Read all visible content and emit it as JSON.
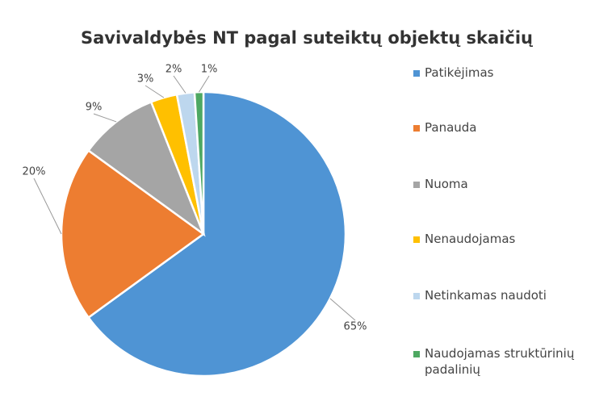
{
  "chart_data": {
    "type": "pie",
    "title": "Savivaldybės NT pagal suteiktų objektų skaičių",
    "categories": [
      "Patikėjimas",
      "Panauda",
      "Nuoma",
      "Nenaudojamas",
      "Netinkamas naudoti",
      "Naudojamas struktūrinių padalinių"
    ],
    "values": [
      65,
      20,
      9,
      3,
      2,
      1
    ],
    "value_labels": [
      "65%",
      "20%",
      "9%",
      "3%",
      "2%",
      "1%"
    ],
    "colors": [
      "#4f94d4",
      "#ed7d31",
      "#a5a5a5",
      "#ffc000",
      "#bdd7ee",
      "#4ea862"
    ],
    "legend": "right"
  }
}
